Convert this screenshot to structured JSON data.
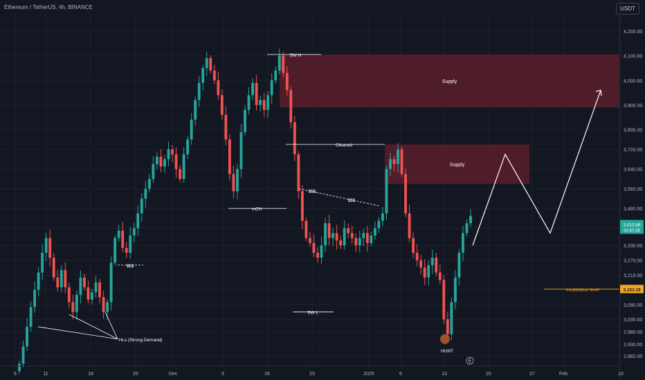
{
  "header": {
    "title": "Ethereum / TetherUS, 4h, BINANCE",
    "currency_button": "USDT"
  },
  "colors": {
    "background": "#131722",
    "bull": "#26a69a",
    "bear": "#ef5350",
    "supply_zone": "#5b1d2b",
    "annotation": "#ffffff",
    "price_tag": "#26a69a",
    "invalidation": "#f5a623"
  },
  "chart_data": {
    "type": "candlestick",
    "ylim": [
      2840,
      4270
    ],
    "y_ticks": [
      "4,200.00",
      "4,100.00",
      "4,000.00",
      "3,900.00",
      "3,800.00",
      "3,720.00",
      "3,640.00",
      "3,560.00",
      "3,480.00",
      "3,400.00",
      "3,330.00",
      "3,270.00",
      "3,210.00",
      "3,150.00",
      "3,090.00",
      "3,030.00",
      "2,980.00",
      "2,930.00",
      "2,882.00"
    ],
    "x_ticks": [
      "6",
      "11",
      "18",
      "25",
      "Dec",
      "9",
      "16",
      "23",
      "2025",
      "6",
      "13",
      "20",
      "27",
      "Feb",
      "10"
    ],
    "closes": [
      2850,
      2920,
      3000,
      3080,
      3150,
      3220,
      3300,
      3360,
      3280,
      3200,
      3160,
      3230,
      3160,
      3100,
      3060,
      3130,
      3200,
      3160,
      3110,
      3140,
      3180,
      3120,
      3060,
      3100,
      3260,
      3360,
      3390,
      3320,
      3300,
      3370,
      3400,
      3460,
      3520,
      3560,
      3600,
      3660,
      3690,
      3650,
      3680,
      3720,
      3700,
      3640,
      3600,
      3700,
      3760,
      3840,
      3920,
      3990,
      4050,
      4090,
      4040,
      4000,
      3940,
      3860,
      3760,
      3620,
      3550,
      3640,
      3790,
      3880,
      3940,
      3990,
      3900,
      3920,
      3880,
      3940,
      4000,
      4040,
      4100,
      4030,
      3960,
      3830,
      3700,
      3550,
      3430,
      3360,
      3340,
      3300,
      3280,
      3330,
      3420,
      3360,
      3380,
      3350,
      3330,
      3400,
      3380,
      3360,
      3330,
      3360,
      3380,
      3340,
      3370,
      3400,
      3430,
      3460,
      3640,
      3680,
      3660,
      3720,
      3620,
      3460,
      3360,
      3300,
      3270,
      3240,
      3200,
      3250,
      3280,
      3220,
      3190,
      3030,
      2970,
      3100,
      3200,
      3300,
      3380,
      3420,
      3450
    ],
    "current_price": "3,410.88",
    "countdown": "02:47:26",
    "invalidation_price": "3,153.18"
  },
  "zones": [
    {
      "label": "Supply",
      "top": 4105,
      "bottom": 3890
    },
    {
      "label": "Supply",
      "top": 3740,
      "bottom": 3580
    }
  ],
  "annotations": {
    "sw_h": "SW H",
    "cleaned": "Cleaned",
    "mch": "mCH",
    "liquidity_1": "$$$",
    "liquidity_2": "$$$",
    "liquidity_3": "$$$",
    "sw_l": "SW L",
    "hls": "HLs (Strong Demand)",
    "hunt": "HUNT",
    "invalidation": "invalidation level"
  },
  "projection": [
    3330,
    3700,
    3380,
    3960
  ]
}
